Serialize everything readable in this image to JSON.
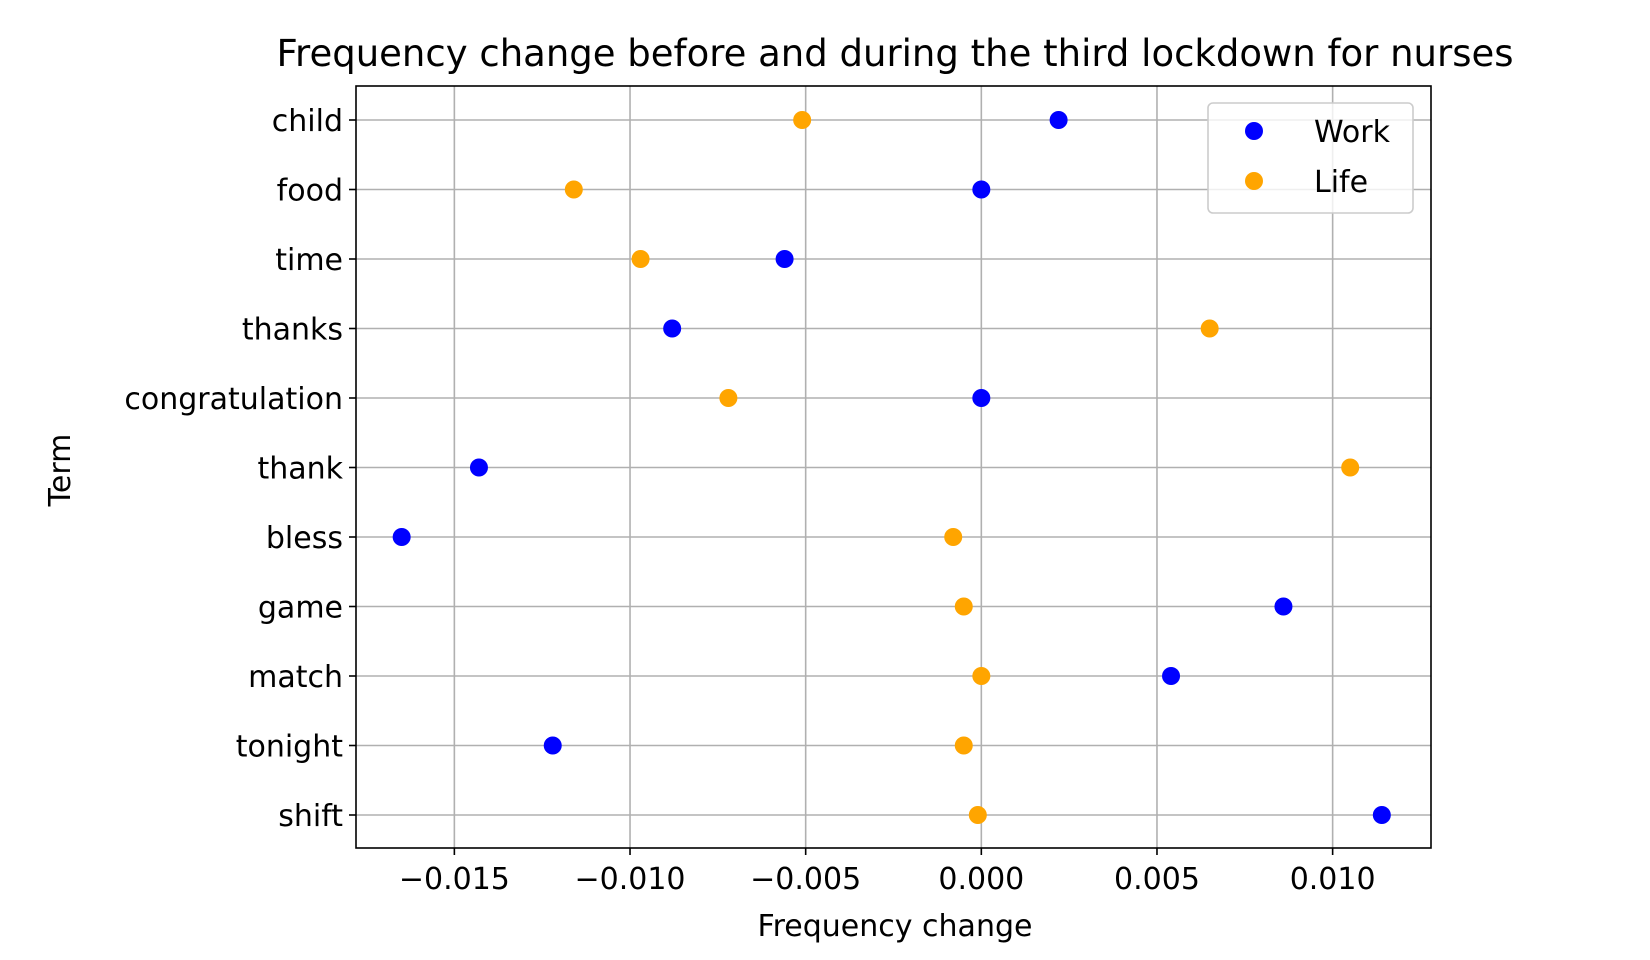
{
  "chart_data": {
    "type": "scatter",
    "title": "Frequency change before and during the third lockdown for nurses",
    "xlabel": "Frequency change",
    "ylabel": "Term",
    "xlim": [
      -0.0178,
      0.0128
    ],
    "x_ticks": [
      -0.015,
      -0.01,
      -0.005,
      0.0,
      0.005,
      0.01
    ],
    "x_tick_labels": [
      "−0.015",
      "−0.010",
      "−0.005",
      "0.000",
      "0.005",
      "0.010"
    ],
    "categories": [
      "child",
      "food",
      "time",
      "thanks",
      "congratulation",
      "thank",
      "bless",
      "game",
      "match",
      "tonight",
      "shift"
    ],
    "grid": true,
    "legend_position": "top-right",
    "series": [
      {
        "name": "Work",
        "color": "#0000ff",
        "values": [
          0.0022,
          0.0,
          -0.0056,
          -0.0088,
          0.0,
          -0.0143,
          -0.0165,
          0.0086,
          0.0054,
          -0.0122,
          0.0114
        ]
      },
      {
        "name": "Life",
        "color": "#ffa500",
        "values": [
          -0.0051,
          -0.0116,
          -0.0097,
          0.0065,
          -0.0072,
          0.0105,
          -0.0008,
          -0.0005,
          0.0,
          -0.0005,
          -0.0001
        ]
      }
    ]
  }
}
